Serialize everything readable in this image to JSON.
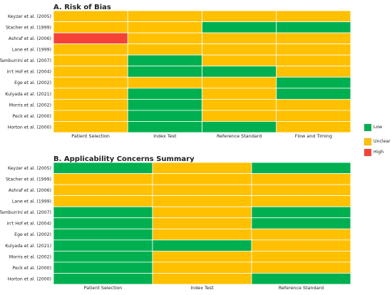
{
  "colors": {
    "low": "#00b050",
    "unclear": "#ffc000",
    "high": "#f44336"
  },
  "legend": [
    {
      "key": "low",
      "label": "Low"
    },
    {
      "key": "unclear",
      "label": "Unclear"
    },
    {
      "key": "high",
      "label": "High"
    }
  ],
  "chart_data": [
    {
      "type": "heatmap",
      "title": "A. Risk of Bias",
      "rows": [
        "Keyzer et al. (2005)",
        "Stacher et al. (1999)",
        "Ashraf et al. (2006)",
        "Lane et al. (1999)",
        "Tamburrini et al. (2007)",
        "in't Hof et al. (2004)",
        "Ege et al. (2002)",
        "Kulyada et al. (2021)",
        "Morris et al. (2002)",
        "Peck et al. (2000)",
        "Horton et al. (2000)"
      ],
      "columns": [
        "Patient Selection",
        "Index Test",
        "Reference Standard",
        "Flow and Timing"
      ],
      "values": [
        [
          "unclear",
          "unclear",
          "unclear",
          "unclear"
        ],
        [
          "unclear",
          "unclear",
          "low",
          "low"
        ],
        [
          "high",
          "unclear",
          "unclear",
          "unclear"
        ],
        [
          "unclear",
          "unclear",
          "unclear",
          "unclear"
        ],
        [
          "unclear",
          "low",
          "unclear",
          "unclear"
        ],
        [
          "unclear",
          "low",
          "low",
          "unclear"
        ],
        [
          "unclear",
          "unclear",
          "unclear",
          "low"
        ],
        [
          "unclear",
          "low",
          "unclear",
          "low"
        ],
        [
          "unclear",
          "low",
          "unclear",
          "unclear"
        ],
        [
          "unclear",
          "low",
          "unclear",
          "unclear"
        ],
        [
          "unclear",
          "low",
          "low",
          "unclear"
        ]
      ]
    },
    {
      "type": "heatmap",
      "title": "B. Applicability Concerns Summary",
      "rows": [
        "Keyzer et al. (2005)",
        "Stacher et al. (1999)",
        "Ashraf et al. (2006)",
        "Lane et al. (1999)",
        "Tamburrini et al. (2007)",
        "in't Hof et al. (2004)",
        "Ege et al. (2002)",
        "Kulyada et al. (2021)",
        "Morris et al. (2002)",
        "Peck et al. (2000)",
        "Horton et al. (2000)"
      ],
      "columns": [
        "Patient Selection",
        "Index Test",
        "Reference Standard"
      ],
      "values": [
        [
          "low",
          "unclear",
          "low"
        ],
        [
          "unclear",
          "unclear",
          "unclear"
        ],
        [
          "unclear",
          "unclear",
          "unclear"
        ],
        [
          "unclear",
          "unclear",
          "unclear"
        ],
        [
          "low",
          "unclear",
          "low"
        ],
        [
          "low",
          "unclear",
          "low"
        ],
        [
          "low",
          "unclear",
          "unclear"
        ],
        [
          "low",
          "low",
          "unclear"
        ],
        [
          "low",
          "unclear",
          "unclear"
        ],
        [
          "low",
          "unclear",
          "unclear"
        ],
        [
          "low",
          "unclear",
          "low"
        ]
      ]
    }
  ]
}
